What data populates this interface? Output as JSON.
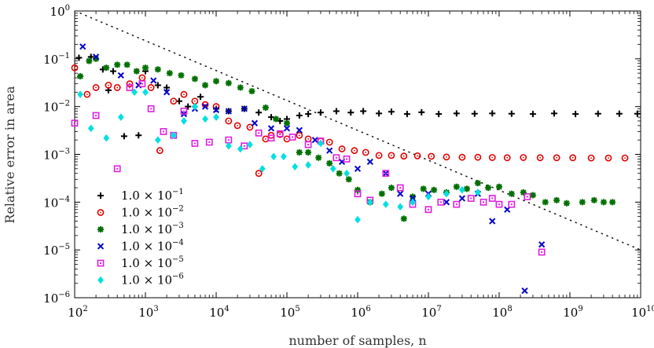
{
  "chart_data": {
    "type": "scatter",
    "xscale": "log",
    "yscale": "log",
    "xlim": [
      100,
      10000000000
    ],
    "ylim": [
      1e-06,
      1
    ],
    "xlabel": "number of samples, n",
    "ylabel": "Relative error in area",
    "x_ticks": [
      {
        "base": "10",
        "exp": "2",
        "value": 100
      },
      {
        "base": "10",
        "exp": "3",
        "value": 1000
      },
      {
        "base": "10",
        "exp": "4",
        "value": 10000
      },
      {
        "base": "10",
        "exp": "5",
        "value": 100000
      },
      {
        "base": "10",
        "exp": "6",
        "value": 1000000
      },
      {
        "base": "10",
        "exp": "7",
        "value": 10000000
      },
      {
        "base": "10",
        "exp": "8",
        "value": 100000000
      },
      {
        "base": "10",
        "exp": "9",
        "value": 1000000000
      },
      {
        "base": "10",
        "exp": "10",
        "value": 10000000000
      }
    ],
    "y_ticks": [
      {
        "base": "10",
        "exp": "0",
        "value": 1
      },
      {
        "base": "10",
        "exp": "-1",
        "value": 0.1
      },
      {
        "base": "10",
        "exp": "-2",
        "value": 0.01
      },
      {
        "base": "10",
        "exp": "-3",
        "value": 0.001
      },
      {
        "base": "10",
        "exp": "-4",
        "value": 0.0001
      },
      {
        "base": "10",
        "exp": "-5",
        "value": 1e-05
      },
      {
        "base": "10",
        "exp": "-6",
        "value": 1e-06
      }
    ],
    "reference_line": {
      "style": "dotted",
      "label": "",
      "x": [
        120,
        10000000000
      ],
      "y": [
        0.9,
        1e-05
      ]
    },
    "legend_position": "lower-left",
    "series": [
      {
        "name": "1.0 × 10^-1",
        "mantissa": "1.0 × 10",
        "exp": "−1",
        "marker": "plus",
        "color": "#000000",
        "points": [
          [
            115,
            0.105
          ],
          [
            170,
            0.11
          ],
          [
            250,
            0.06
          ],
          [
            300,
            0.022
          ],
          [
            350,
            0.055
          ],
          [
            500,
            0.0024
          ],
          [
            800,
            0.0025
          ],
          [
            1000,
            0.055
          ],
          [
            1500,
            0.028
          ],
          [
            2000,
            0.025
          ],
          [
            3000,
            0.013
          ],
          [
            4000,
            0.01
          ],
          [
            6000,
            0.016
          ],
          [
            10000,
            0.009
          ],
          [
            15000,
            0.008
          ],
          [
            25000,
            0.009
          ],
          [
            40000,
            0.0075
          ],
          [
            60000,
            0.006
          ],
          [
            80000,
            0.005
          ],
          [
            100000,
            0.0055
          ],
          [
            150000,
            0.0065
          ],
          [
            200000,
            0.007
          ],
          [
            300000,
            0.0075
          ],
          [
            500000,
            0.008
          ],
          [
            800000,
            0.0075
          ],
          [
            1200000,
            0.008
          ],
          [
            2000000,
            0.0072
          ],
          [
            3000000,
            0.0078
          ],
          [
            5000000,
            0.007
          ],
          [
            8000000,
            0.0076
          ],
          [
            14000000,
            0.007
          ],
          [
            25000000,
            0.0072
          ],
          [
            45000000,
            0.0071
          ],
          [
            80000000,
            0.0072
          ],
          [
            150000000,
            0.0071
          ],
          [
            300000000,
            0.007
          ],
          [
            600000000,
            0.0072
          ],
          [
            1200000000,
            0.007
          ],
          [
            2500000000,
            0.0071
          ],
          [
            5000000000,
            0.0071
          ],
          [
            9000000000,
            0.0071
          ]
        ]
      },
      {
        "name": "1.0 × 10^-2",
        "mantissa": "1.0 × 10",
        "exp": "−2",
        "marker": "circle",
        "color": "#e00000",
        "points": [
          [
            100,
            0.065
          ],
          [
            150,
            0.018
          ],
          [
            200,
            0.025
          ],
          [
            300,
            0.028
          ],
          [
            400,
            0.025
          ],
          [
            600,
            0.03
          ],
          [
            900,
            0.04
          ],
          [
            1200,
            0.025
          ],
          [
            1600,
            0.0012
          ],
          [
            2500,
            0.013
          ],
          [
            3500,
            0.018
          ],
          [
            5000,
            0.013
          ],
          [
            7000,
            0.011
          ],
          [
            10000,
            0.01
          ],
          [
            15000,
            0.005
          ],
          [
            20000,
            0.004
          ],
          [
            30000,
            0.0037
          ],
          [
            40000,
            0.0004
          ],
          [
            50000,
            0.0021
          ],
          [
            60000,
            0.0025
          ],
          [
            80000,
            0.0026
          ],
          [
            100000,
            0.0021
          ],
          [
            150000,
            0.0025
          ],
          [
            200000,
            0.0021
          ],
          [
            300000,
            0.0019
          ],
          [
            400000,
            0.0018
          ],
          [
            600000,
            0.0013
          ],
          [
            900000,
            0.0012
          ],
          [
            1300000,
            0.0011
          ],
          [
            2000000,
            0.00095
          ],
          [
            3000000,
            0.00095
          ],
          [
            4500000,
            0.00092
          ],
          [
            7000000,
            0.00093
          ],
          [
            11000000,
            0.00091
          ],
          [
            18000000,
            0.00088
          ],
          [
            30000000,
            0.00087
          ],
          [
            50000000,
            0.00087
          ],
          [
            80000000,
            0.00086
          ],
          [
            130000000,
            0.00085
          ],
          [
            220000000,
            0.00086
          ],
          [
            380000000,
            0.00085
          ],
          [
            650000000,
            0.00085
          ],
          [
            1100000000,
            0.00085
          ],
          [
            2000000000,
            0.00084
          ],
          [
            3500000000,
            0.00084
          ],
          [
            6000000000,
            0.00084
          ]
        ]
      },
      {
        "name": "1.0 × 10^-3",
        "mantissa": "1.0 × 10",
        "exp": "−3",
        "marker": "star",
        "color": "#007000",
        "points": [
          [
            120,
            0.043
          ],
          [
            160,
            0.09
          ],
          [
            200,
            0.1
          ],
          [
            280,
            0.065
          ],
          [
            400,
            0.075
          ],
          [
            550,
            0.075
          ],
          [
            750,
            0.055
          ],
          [
            1000,
            0.065
          ],
          [
            1500,
            0.06
          ],
          [
            2200,
            0.05
          ],
          [
            3200,
            0.045
          ],
          [
            5000,
            0.038
          ],
          [
            7000,
            0.028
          ],
          [
            10000,
            0.034
          ],
          [
            15000,
            0.031
          ],
          [
            22000,
            0.025
          ],
          [
            32000,
            0.021
          ],
          [
            50000,
            0.0095
          ],
          [
            70000,
            0.0055
          ],
          [
            100000,
            0.0045
          ],
          [
            150000,
            0.0011
          ],
          [
            200000,
            0.0011
          ],
          [
            280000,
            0.00085
          ],
          [
            400000,
            0.00065
          ],
          [
            550000,
            0.0004
          ],
          [
            750000,
            0.0003
          ],
          [
            1000000,
            0.00018
          ],
          [
            1500000,
            0.0001
          ],
          [
            2200000,
            0.00015
          ],
          [
            3000000,
            0.0002
          ],
          [
            4500000,
            4.5e-05
          ],
          [
            6000000,
            0.00013
          ],
          [
            8500000,
            0.00019
          ],
          [
            12000000,
            0.00018
          ],
          [
            18000000,
            0.00016
          ],
          [
            25000000,
            0.00021
          ],
          [
            35000000,
            0.00019
          ],
          [
            50000000,
            0.00025
          ],
          [
            70000000,
            0.0002
          ],
          [
            100000000,
            0.00021
          ],
          [
            150000000,
            0.00015
          ],
          [
            220000000,
            0.00016
          ],
          [
            300000000,
            0.00014
          ],
          [
            450000000,
            0.0001
          ],
          [
            650000000,
            0.00011
          ],
          [
            900000000,
            9.5e-05
          ],
          [
            1500000000,
            0.0001
          ],
          [
            2200000000,
            0.00011
          ],
          [
            3000000000,
            0.0001
          ],
          [
            4000000000,
            0.0001
          ]
        ]
      },
      {
        "name": "1.0 × 10^-4",
        "mantissa": "1.0 × 10",
        "exp": "−4",
        "marker": "x",
        "color": "#0000cc",
        "points": [
          [
            130,
            0.18
          ],
          [
            200,
            0.11
          ],
          [
            450,
            0.045
          ],
          [
            800,
            0.028
          ],
          [
            1300,
            0.035
          ],
          [
            2000,
            0.02
          ],
          [
            3500,
            0.007
          ],
          [
            5000,
            0.009
          ],
          [
            7000,
            0.01
          ],
          [
            10000,
            0.0085
          ],
          [
            15000,
            0.008
          ],
          [
            25000,
            0.009
          ],
          [
            35000,
            0.0045
          ],
          [
            60000,
            0.0035
          ],
          [
            100000,
            0.0035
          ],
          [
            150000,
            0.0032
          ],
          [
            250000,
            0.002
          ],
          [
            400000,
            0.0012
          ],
          [
            600000,
            0.0007
          ],
          [
            1000000,
            0.0005
          ],
          [
            1500000,
            0.0007
          ],
          [
            2500000,
            0.0004
          ],
          [
            4000000,
            0.00015
          ],
          [
            6000000,
            0.00012
          ],
          [
            10000000,
            0.00015
          ],
          [
            18000000,
            0.0001
          ],
          [
            30000000,
            0.00012
          ],
          [
            50000000,
            0.00015
          ],
          [
            80000000,
            4e-05
          ],
          [
            130000000,
            7e-05
          ],
          [
            230000000,
            1.4e-06
          ],
          [
            400000000,
            1.3e-05
          ]
        ]
      },
      {
        "name": "1.0 × 10^-5",
        "mantissa": "1.0 × 10",
        "exp": "−5",
        "marker": "square",
        "color": "#e020e0",
        "points": [
          [
            100,
            0.0045
          ],
          [
            200,
            0.0065
          ],
          [
            400,
            0.0005
          ],
          [
            600,
            0.025
          ],
          [
            900,
            0.03
          ],
          [
            1200,
            0.009
          ],
          [
            1800,
            0.003
          ],
          [
            2500,
            0.0025
          ],
          [
            3500,
            0.008
          ],
          [
            5000,
            0.0017
          ],
          [
            8000,
            0.0018
          ],
          [
            15000,
            0.002
          ],
          [
            25000,
            0.0015
          ],
          [
            40000,
            0.0028
          ],
          [
            60000,
            0.0022
          ],
          [
            80000,
            0.0027
          ],
          [
            120000,
            0.0023
          ],
          [
            200000,
            0.0016
          ],
          [
            300000,
            0.0019
          ],
          [
            500000,
            0.00085
          ],
          [
            700000,
            0.0008
          ],
          [
            1000000,
            0.00015
          ],
          [
            1500000,
            0.00011
          ],
          [
            2500000,
            0.0004
          ],
          [
            4000000,
            0.0002
          ],
          [
            6000000,
            9e-05
          ],
          [
            10000000,
            7e-05
          ],
          [
            15000000,
            0.0001
          ],
          [
            25000000,
            9e-05
          ],
          [
            40000000,
            0.00012
          ],
          [
            60000000,
            0.0001
          ],
          [
            80000000,
            0.00012
          ],
          [
            100000000,
            9e-05
          ],
          [
            150000000,
            9e-05
          ],
          [
            250000000,
            0.00013
          ],
          [
            400000000,
            9e-06
          ]
        ]
      },
      {
        "name": "1.0 × 10^-6",
        "mantissa": "1.0 × 10",
        "exp": "−6",
        "marker": "diamond",
        "color": "#00e0e0",
        "points": [
          [
            120,
            0.018
          ],
          [
            170,
            0.0035
          ],
          [
            280,
            0.0022
          ],
          [
            450,
            0.006
          ],
          [
            700,
            0.02
          ],
          [
            1000,
            0.02
          ],
          [
            1500,
            0.002
          ],
          [
            2500,
            0.0025
          ],
          [
            3500,
            0.005
          ],
          [
            5000,
            0.01
          ],
          [
            7000,
            0.0055
          ],
          [
            10000,
            0.006
          ],
          [
            15000,
            0.0015
          ],
          [
            22000,
            0.0013
          ],
          [
            30000,
            0.0016
          ],
          [
            45000,
            0.0005
          ],
          [
            65000,
            0.0009
          ],
          [
            90000,
            0.0009
          ],
          [
            130000,
            0.00055
          ],
          [
            200000,
            0.0006
          ],
          [
            300000,
            0.0017
          ],
          [
            450000,
            0.0005
          ],
          [
            700000,
            0.0004
          ],
          [
            1000000,
            4.3e-05
          ],
          [
            1500000,
            0.0001
          ],
          [
            2500000,
            9e-05
          ],
          [
            4000000,
            8e-05
          ],
          [
            6000000,
            0.0001
          ],
          [
            10000000,
            0.00013
          ],
          [
            18000000,
            0.00015
          ],
          [
            30000000,
            0.00018
          ],
          [
            50000000,
            0.00016
          ]
        ]
      }
    ]
  }
}
